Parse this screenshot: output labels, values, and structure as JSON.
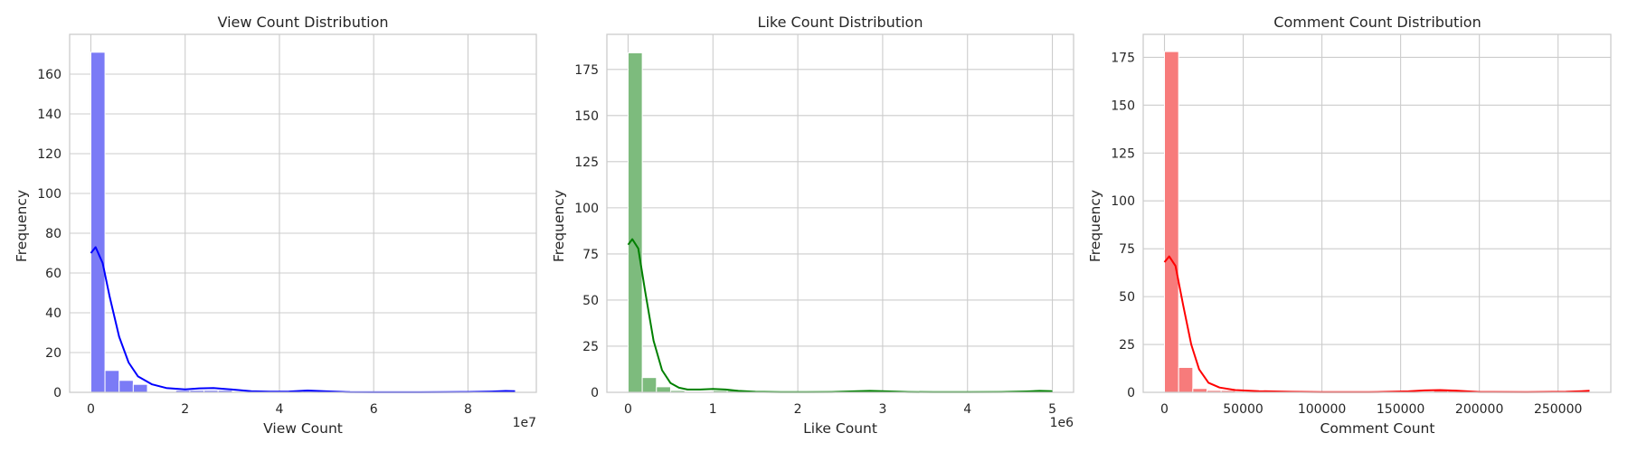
{
  "chart_data": [
    {
      "type": "histogram",
      "title": "View Count Distribution",
      "xlabel": "View Count",
      "ylabel": "Frequency",
      "offset_label": "1e7",
      "xlim": [
        -0.45,
        9.45
      ],
      "ylim": [
        0,
        180
      ],
      "xticks": [
        0,
        2,
        4,
        6,
        8
      ],
      "xtick_labels": [
        "0",
        "2",
        "4",
        "6",
        "8"
      ],
      "yticks": [
        0,
        20,
        40,
        60,
        80,
        100,
        120,
        140,
        160
      ],
      "ytick_labels": [
        "0",
        "20",
        "40",
        "60",
        "80",
        "100",
        "120",
        "140",
        "160"
      ],
      "bar_color": "#7b7bf6",
      "kde_color": "#0000ff",
      "bins": {
        "start": 0,
        "width": 0.3,
        "count": 30,
        "counts": [
          171,
          11,
          6,
          4,
          0,
          0,
          1,
          1,
          1,
          1,
          0,
          0,
          0,
          0,
          0,
          1,
          1,
          0,
          0,
          0,
          0,
          0,
          0,
          0,
          0,
          0,
          0,
          0,
          0,
          1
        ]
      },
      "kde": {
        "x": [
          0,
          0.1,
          0.25,
          0.4,
          0.6,
          0.8,
          1.0,
          1.3,
          1.6,
          2.0,
          2.3,
          2.6,
          3.0,
          3.4,
          3.8,
          4.2,
          4.6,
          5.0,
          5.5,
          6.0,
          6.5,
          7.0,
          7.5,
          8.0,
          8.5,
          8.8,
          9.0
        ],
        "y": [
          70,
          73,
          65,
          48,
          28,
          15,
          8,
          4,
          2.2,
          1.5,
          2.0,
          2.2,
          1.4,
          0.6,
          0.3,
          0.4,
          0.9,
          0.5,
          0.1,
          0.05,
          0.05,
          0.05,
          0.1,
          0.2,
          0.4,
          0.7,
          0.6
        ]
      }
    },
    {
      "type": "histogram",
      "title": "Like Count Distribution",
      "xlabel": "Like Count",
      "ylabel": "Frequency",
      "offset_label": "1e6",
      "xlim": [
        -0.25,
        5.25
      ],
      "ylim": [
        0,
        194
      ],
      "xticks": [
        0,
        1,
        2,
        3,
        4,
        5
      ],
      "xtick_labels": [
        "0",
        "1",
        "2",
        "3",
        "4",
        "5"
      ],
      "yticks": [
        0,
        25,
        50,
        75,
        100,
        125,
        150,
        175
      ],
      "ytick_labels": [
        "0",
        "25",
        "50",
        "75",
        "100",
        "125",
        "150",
        "175"
      ],
      "bar_color": "#7dbb7d",
      "kde_color": "#008000",
      "bins": {
        "start": 0,
        "width": 0.167,
        "count": 30,
        "counts": [
          184,
          8,
          3,
          1,
          0,
          0,
          1,
          1,
          0,
          0,
          0,
          0,
          0,
          0,
          0,
          0,
          1,
          0,
          0,
          0,
          0,
          0,
          0,
          0,
          0,
          0,
          0,
          0,
          0,
          1
        ]
      },
      "kde": {
        "x": [
          0,
          0.05,
          0.12,
          0.2,
          0.3,
          0.4,
          0.5,
          0.6,
          0.7,
          0.85,
          1.0,
          1.15,
          1.3,
          1.5,
          1.8,
          2.1,
          2.4,
          2.7,
          2.85,
          3.0,
          3.3,
          3.6,
          4.0,
          4.4,
          4.7,
          4.85,
          5.0
        ],
        "y": [
          80,
          83,
          78,
          55,
          28,
          12,
          5,
          2.5,
          1.5,
          1.5,
          1.8,
          1.5,
          0.8,
          0.3,
          0.1,
          0.1,
          0.2,
          0.6,
          0.8,
          0.6,
          0.2,
          0.1,
          0.1,
          0.2,
          0.5,
          0.8,
          0.6
        ]
      }
    },
    {
      "type": "histogram",
      "title": "Comment Count Distribution",
      "xlabel": "Comment Count",
      "ylabel": "Frequency",
      "offset_label": "",
      "xlim": [
        -13500,
        283500
      ],
      "ylim": [
        0,
        187
      ],
      "xticks": [
        0,
        50000,
        100000,
        150000,
        200000,
        250000
      ],
      "xtick_labels": [
        "0",
        "50000",
        "100000",
        "150000",
        "200000",
        "250000"
      ],
      "yticks": [
        0,
        25,
        50,
        75,
        100,
        125,
        150,
        175
      ],
      "ytick_labels": [
        "0",
        "25",
        "50",
        "75",
        "100",
        "125",
        "150",
        "175"
      ],
      "bar_color": "#f77b7b",
      "kde_color": "#ff0000",
      "bins": {
        "start": 0,
        "width": 9000,
        "count": 30,
        "counts": [
          178,
          13,
          2,
          1,
          1,
          0,
          0,
          0,
          0,
          0,
          0,
          0,
          0,
          0,
          0,
          0,
          0,
          0,
          0,
          1,
          1,
          0,
          0,
          0,
          0,
          0,
          0,
          0,
          0,
          1
        ]
      },
      "kde": {
        "x": [
          0,
          3000,
          7000,
          12000,
          17000,
          22000,
          28000,
          35000,
          45000,
          60000,
          80000,
          100000,
          130000,
          155000,
          165000,
          175000,
          185000,
          200000,
          230000,
          255000,
          265000,
          270000
        ],
        "y": [
          68,
          71,
          66,
          45,
          25,
          12,
          5,
          2.5,
          1.2,
          0.6,
          0.3,
          0.1,
          0.1,
          0.5,
          1.0,
          1.2,
          0.9,
          0.2,
          0.1,
          0.3,
          0.6,
          0.8
        ]
      }
    }
  ]
}
